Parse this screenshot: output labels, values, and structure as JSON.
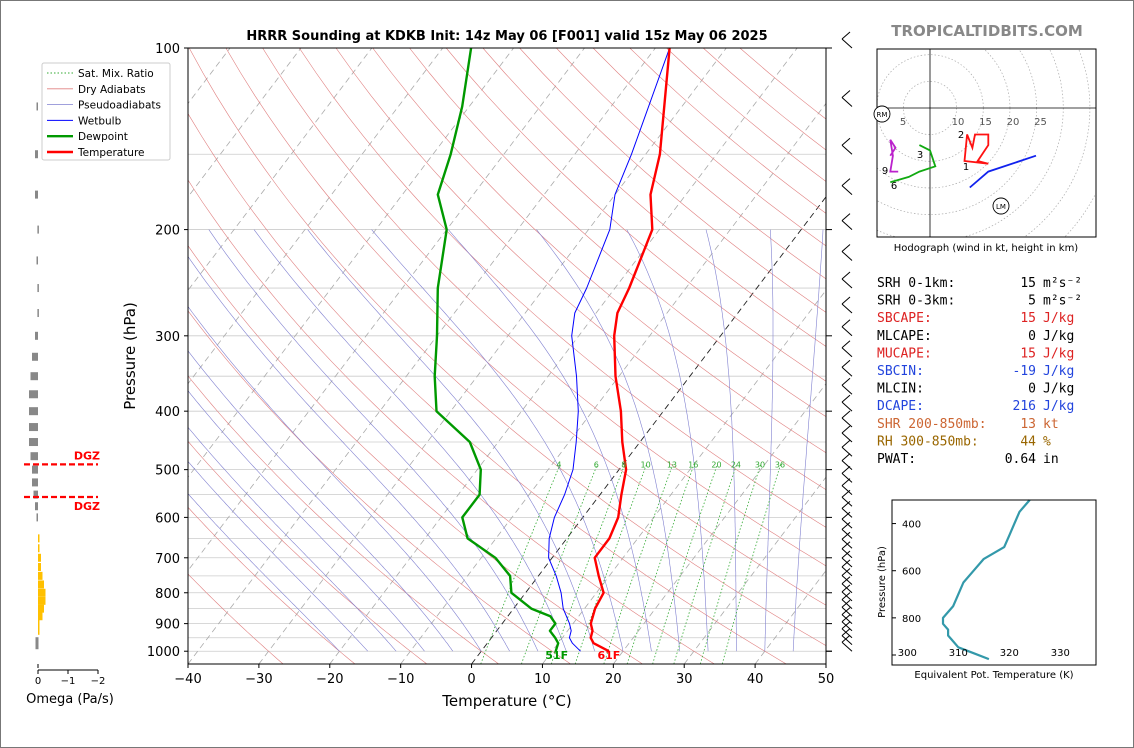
{
  "title": "HRRR Sounding at KDKB Init: 14z May 06 [F001] valid 15z May 06 2025",
  "watermark": "TROPICALTIDBITS.COM",
  "colors": {
    "temperature": "#ff0000",
    "dewpoint": "#009900",
    "wetbulb": "#0000ff",
    "dry_adiabat": "#e08080",
    "moist_adiabat": "#8080d0",
    "mixing_ratio": "#33aa33",
    "isotherm": "#999999",
    "omega_bar": "#888888",
    "omega_bar_up": "#ffc000",
    "dgz": "#ff0000",
    "theta_e": "#3399aa"
  },
  "chart_data": [
    {
      "type": "line",
      "name": "skew-t",
      "title": "HRRR Sounding at KDKB Init: 14z May 06 [F001] valid 15z May 06 2025",
      "xlabel": "Temperature (°C)",
      "ylabel": "Pressure (hPa)",
      "xlim": [
        -40,
        50
      ],
      "ylim": [
        1050,
        100
      ],
      "yscale": "log",
      "x_ticks": [
        "−40",
        "−30",
        "−20",
        "−10",
        "0",
        "10",
        "20",
        "30",
        "40",
        "50"
      ],
      "y_ticks": [
        "100",
        "200",
        "300",
        "400",
        "500",
        "600",
        "700",
        "800",
        "900",
        "1000"
      ],
      "legend": {
        "placement": "top-left",
        "entries": [
          "Sat. Mix. Ratio",
          "Dry Adiabats",
          "Pseudoadiabats",
          "Wetbulb",
          "Dewpoint",
          "Temperature"
        ]
      },
      "mixing_ratio_labels": [
        "4",
        "6",
        "8",
        "10",
        "13",
        "16",
        "20",
        "24",
        "30",
        "36"
      ],
      "series": [
        {
          "name": "Temperature",
          "points": [
            [
              1000,
              18
            ],
            [
              970,
              15
            ],
            [
              950,
              14
            ],
            [
              925,
              13.5
            ],
            [
              900,
              12.5
            ],
            [
              850,
              11.5
            ],
            [
              800,
              11
            ],
            [
              750,
              8.5
            ],
            [
              700,
              6
            ],
            [
              650,
              6
            ],
            [
              600,
              5
            ],
            [
              550,
              3
            ],
            [
              500,
              1
            ],
            [
              450,
              -2.5
            ],
            [
              400,
              -6
            ],
            [
              350,
              -10.5
            ],
            [
              300,
              -15
            ],
            [
              275,
              -17
            ],
            [
              250,
              -18
            ],
            [
              200,
              -21
            ],
            [
              175,
              -25
            ],
            [
              150,
              -28
            ],
            [
              100,
              -38
            ]
          ]
        },
        {
          "name": "Dewpoint",
          "points": [
            [
              1000,
              10.5
            ],
            [
              970,
              10
            ],
            [
              950,
              9
            ],
            [
              925,
              7.5
            ],
            [
              900,
              7.5
            ],
            [
              875,
              6
            ],
            [
              850,
              2.5
            ],
            [
              800,
              -2
            ],
            [
              750,
              -4
            ],
            [
              700,
              -8
            ],
            [
              650,
              -14
            ],
            [
              600,
              -17
            ],
            [
              550,
              -17
            ],
            [
              500,
              -19.5
            ],
            [
              450,
              -24
            ],
            [
              400,
              -32
            ],
            [
              350,
              -36
            ],
            [
              300,
              -40
            ],
            [
              250,
              -45
            ],
            [
              200,
              -50
            ],
            [
              175,
              -55
            ],
            [
              150,
              -57.5
            ],
            [
              125,
              -61
            ],
            [
              100,
              -66
            ]
          ]
        },
        {
          "name": "Wetbulb",
          "points": [
            [
              1000,
              14
            ],
            [
              970,
              12
            ],
            [
              950,
              11
            ],
            [
              925,
              10.5
            ],
            [
              900,
              9.5
            ],
            [
              850,
              7
            ],
            [
              800,
              5
            ],
            [
              750,
              2.5
            ],
            [
              700,
              -0.5
            ],
            [
              650,
              -2.5
            ],
            [
              600,
              -4
            ],
            [
              550,
              -5
            ],
            [
              500,
              -6.5
            ],
            [
              450,
              -9
            ],
            [
              400,
              -12
            ],
            [
              350,
              -16
            ],
            [
              300,
              -21
            ],
            [
              275,
              -23
            ],
            [
              250,
              -24
            ],
            [
              200,
              -27
            ],
            [
              175,
              -30
            ],
            [
              150,
              -32
            ],
            [
              100,
              -38
            ]
          ]
        }
      ],
      "annotations": {
        "surface_dewpoint": "51F",
        "surface_temperature": "61F"
      }
    },
    {
      "type": "bar",
      "name": "omega",
      "xlabel": "Omega (Pa/s)",
      "xlim": [
        0,
        -2
      ],
      "x_ticks": [
        "0",
        "−1",
        "−2"
      ],
      "pressures": [
        100,
        125,
        150,
        175,
        200,
        225,
        250,
        275,
        300,
        325,
        350,
        375,
        400,
        425,
        450,
        475,
        500,
        525,
        550,
        575,
        600,
        625,
        650,
        675,
        700,
        725,
        750,
        775,
        800,
        825,
        850,
        875,
        900,
        925,
        950,
        975,
        1000
      ],
      "values": [
        0,
        0.05,
        0.1,
        0.1,
        0.02,
        0.05,
        0.02,
        0.02,
        0.1,
        0.2,
        0.25,
        0.3,
        0.3,
        0.3,
        0.3,
        0.25,
        0.2,
        0.2,
        0.15,
        0.1,
        0.05,
        0,
        -0.05,
        -0.05,
        -0.1,
        -0.1,
        -0.15,
        -0.2,
        -0.25,
        -0.25,
        -0.2,
        -0.15,
        -0.05,
        -0.02,
        0,
        0,
        0
      ],
      "dgz": {
        "top": 490,
        "bottom": 555,
        "label": "DGZ"
      }
    },
    {
      "type": "line",
      "name": "hodograph",
      "title": "Hodograph (wind in kt, height in km)",
      "ring_labels": [
        "5",
        "10",
        "15",
        "20",
        "25"
      ],
      "markers": [
        "RM",
        "LM"
      ],
      "height_labels": [
        "1",
        "2",
        "3",
        "6",
        "9"
      ],
      "segments": [
        {
          "color": "blue",
          "points": [
            [
              7.5,
              -15
            ],
            [
              11,
              -12
            ],
            [
              20,
              -9
            ]
          ]
        },
        {
          "color": "red",
          "points": [
            [
              11,
              -10.5
            ],
            [
              6.5,
              -10
            ],
            [
              7,
              -5
            ],
            [
              8,
              -7.5
            ],
            [
              8.5,
              -5
            ],
            [
              11,
              -5
            ],
            [
              11,
              -7
            ],
            [
              9,
              -10
            ],
            [
              11,
              -10.5
            ]
          ]
        },
        {
          "color": "magenta",
          "points": [
            [
              -7.5,
              -9
            ],
            [
              -6.5,
              -7.5
            ],
            [
              -7.5,
              -6
            ],
            [
              -7,
              -9
            ],
            [
              -7.5,
              -12
            ],
            [
              -6,
              -12
            ]
          ]
        },
        {
          "color": "green",
          "points": [
            [
              -7.5,
              -14
            ],
            [
              -4,
              -13
            ],
            [
              -2,
              -12
            ],
            [
              1,
              -11
            ],
            [
              0,
              -8
            ],
            [
              -2,
              -7
            ]
          ]
        }
      ]
    },
    {
      "type": "line",
      "name": "theta-e",
      "xlabel": "Equivalent Pot. Temperature (K)",
      "ylabel": "Pressure (hPa)",
      "xlim": [
        297,
        337
      ],
      "ylim": [
        1000,
        300
      ],
      "x_ticks": [
        "300",
        "310",
        "320",
        "330"
      ],
      "y_ticks": [
        "400",
        "600",
        "800"
      ],
      "pressures": [
        300,
        350,
        400,
        450,
        500,
        550,
        600,
        650,
        700,
        750,
        800,
        825,
        850,
        875,
        900,
        925,
        950,
        975
      ],
      "values": [
        324,
        322,
        321,
        320,
        319,
        315,
        313,
        311,
        310,
        309,
        307,
        307,
        308,
        308,
        309,
        310,
        313,
        316
      ]
    }
  ],
  "parameters": [
    {
      "label": "SRH 0-1km:",
      "value": "15",
      "unit": "m²s⁻²",
      "color": "#000000"
    },
    {
      "label": "SRH 0-3km:",
      "value": "5",
      "unit": "m²s⁻²",
      "color": "#000000"
    },
    {
      "label": "SBCAPE:",
      "value": "15",
      "unit": "J/kg",
      "color": "#dd2222"
    },
    {
      "label": "MLCAPE:",
      "value": "0",
      "unit": "J/kg",
      "color": "#000000"
    },
    {
      "label": "MUCAPE:",
      "value": "15",
      "unit": "J/kg",
      "color": "#dd2222"
    },
    {
      "label": "SBCIN:",
      "value": "-19",
      "unit": "J/kg",
      "color": "#2244dd"
    },
    {
      "label": "MLCIN:",
      "value": "0",
      "unit": "J/kg",
      "color": "#000000"
    },
    {
      "label": "DCAPE:",
      "value": "216",
      "unit": "J/kg",
      "color": "#2244dd"
    },
    {
      "label": "SHR 200-850mb:",
      "value": "13",
      "unit": "kt",
      "color": "#cc6633"
    },
    {
      "label": "RH 300-850mb:",
      "value": "44",
      "unit": "%",
      "color": "#996600"
    },
    {
      "label": "PWAT:",
      "value": "0.64",
      "unit": "in",
      "color": "#000000"
    }
  ]
}
